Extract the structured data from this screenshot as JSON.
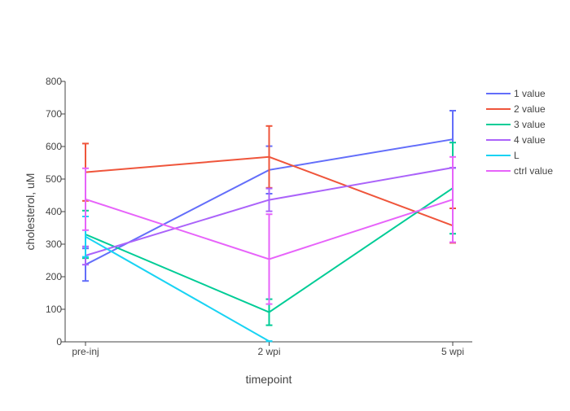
{
  "chart_data": {
    "type": "line",
    "title": "",
    "xlabel": "timepoint",
    "ylabel": "cholesterol, uM",
    "categories": [
      "pre-inj",
      "2 wpi",
      "5 wpi"
    ],
    "ylim": [
      0,
      800
    ],
    "yticks": [
      0,
      100,
      200,
      300,
      400,
      500,
      600,
      700,
      800
    ],
    "grid": false,
    "legend_position": "right",
    "series": [
      {
        "name": "1 value",
        "color": "#636efa",
        "values": [
          237,
          528,
          622
        ],
        "error": [
          50,
          73,
          88
        ]
      },
      {
        "name": "2 value",
        "color": "#ef553b",
        "values": [
          521,
          568,
          357
        ],
        "error": [
          88,
          95,
          53
        ]
      },
      {
        "name": "3 value",
        "color": "#00cc96",
        "values": [
          330,
          91,
          472
        ],
        "error": [
          73,
          40,
          140
        ]
      },
      {
        "name": "4 value",
        "color": "#ab63fa",
        "values": [
          265,
          436,
          535
        ],
        "error": [
          28,
          35,
          0
        ]
      },
      {
        "name": "L",
        "color": "#19d3f3",
        "values": [
          323,
          2,
          null
        ],
        "error": [
          62,
          0,
          0
        ]
      },
      {
        "name": "ctrl value",
        "color": "#e763fa",
        "values": [
          438,
          254,
          437
        ],
        "error": [
          95,
          138,
          131
        ]
      }
    ]
  }
}
